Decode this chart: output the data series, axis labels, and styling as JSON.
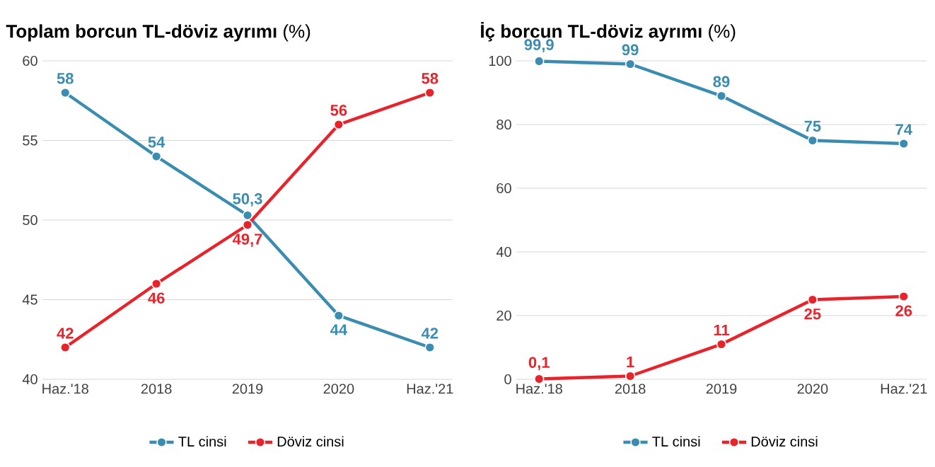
{
  "chart_data": [
    {
      "type": "line",
      "title": "**Toplam borcun TL-döviz ayrımı** (%)",
      "categories": [
        "Haz.'18",
        "2018",
        "2019",
        "2020",
        "Haz.'21"
      ],
      "ylim": [
        40,
        60
      ],
      "yticks": [
        40,
        45,
        50,
        55,
        60
      ],
      "grid": "y",
      "legend": "bottom",
      "marker": "circle",
      "series": [
        {
          "name": "TL cinsi",
          "color": "#3a8db0",
          "values": [
            58,
            54,
            50.3,
            44,
            42
          ],
          "value_labels": [
            "58",
            "54",
            "50,3",
            "44",
            "42"
          ]
        },
        {
          "name": "Döviz cinsi",
          "color": "#e8232b",
          "values": [
            42,
            46,
            49.7,
            56,
            58
          ],
          "value_labels": [
            "42",
            "46",
            "49,7",
            "56",
            "58"
          ]
        }
      ]
    },
    {
      "type": "line",
      "title": "**İç borcun TL-döviz ayrımı** (%)",
      "categories": [
        "Haz.'18",
        "2018",
        "2019",
        "2020",
        "Haz.'21"
      ],
      "ylim": [
        0,
        100
      ],
      "yticks": [
        0,
        20,
        40,
        60,
        80,
        100
      ],
      "grid": "y",
      "legend": "bottom",
      "marker": "circle",
      "series": [
        {
          "name": "TL cinsi",
          "color": "#3a8db0",
          "values": [
            99.9,
            99,
            89,
            75,
            74
          ],
          "value_labels": [
            "99,9",
            "99",
            "89",
            "75",
            "74"
          ]
        },
        {
          "name": "Döviz cinsi",
          "color": "#e8232b",
          "values": [
            0.1,
            1,
            11,
            25,
            26
          ],
          "value_labels": [
            "0,1",
            "1",
            "11",
            "25",
            "26"
          ]
        }
      ]
    }
  ]
}
